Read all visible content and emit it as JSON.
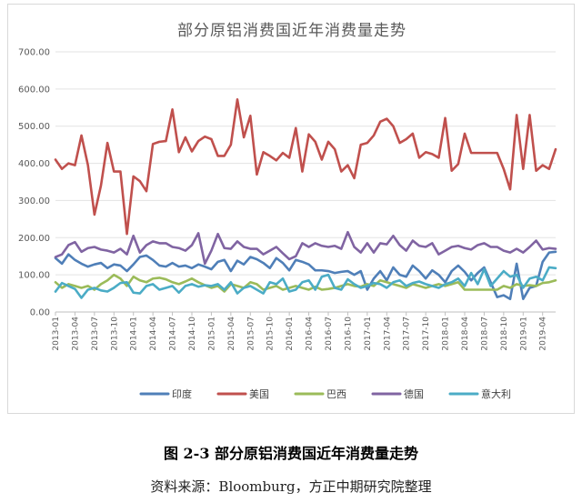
{
  "chart_data": {
    "type": "line",
    "title": "部分原铝消费国近年消费量走势",
    "xlabel": "",
    "ylabel": "",
    "ylim": [
      0,
      700
    ],
    "yticks": [
      "0.00",
      "100.00",
      "200.00",
      "300.00",
      "400.00",
      "500.00",
      "600.00",
      "700.00"
    ],
    "x": [
      "2013-01",
      "2013-02",
      "2013-03",
      "2013-04",
      "2013-05",
      "2013-06",
      "2013-07",
      "2013-08",
      "2013-09",
      "2013-10",
      "2013-11",
      "2013-12",
      "2014-01",
      "2014-02",
      "2014-03",
      "2014-04",
      "2014-05",
      "2014-06",
      "2014-07",
      "2014-08",
      "2014-09",
      "2014-10",
      "2014-11",
      "2014-12",
      "2015-01",
      "2015-02",
      "2015-03",
      "2015-04",
      "2015-05",
      "2015-06",
      "2015-07",
      "2015-08",
      "2015-09",
      "2015-10",
      "2015-11",
      "2015-12",
      "2016-01",
      "2016-02",
      "2016-03",
      "2016-04",
      "2016-05",
      "2016-06",
      "2016-07",
      "2016-08",
      "2016-09",
      "2016-10",
      "2016-11",
      "2016-12",
      "2017-01",
      "2017-02",
      "2017-03",
      "2017-04",
      "2017-05",
      "2017-06",
      "2017-07",
      "2017-08",
      "2017-09",
      "2017-10",
      "2017-11",
      "2017-12",
      "2018-01",
      "2018-02",
      "2018-03",
      "2018-04",
      "2018-05",
      "2018-06",
      "2018-07",
      "2018-08",
      "2018-09",
      "2018-10",
      "2018-11",
      "2018-12",
      "2019-01",
      "2019-02",
      "2019-03",
      "2019-04",
      "2019-05",
      "2019-06"
    ],
    "xtick_labels": [
      "2013-01",
      "2013-04",
      "2013-07",
      "2013-10",
      "2014-01",
      "2014-04",
      "2014-07",
      "2014-10",
      "2015-01",
      "2015-04",
      "2015-07",
      "2015-10",
      "2016-01",
      "2016-04",
      "2016-07",
      "2016-10",
      "2017-01",
      "2017-04",
      "2017-07",
      "2017-10",
      "2018-01",
      "2018-04",
      "2018-07",
      "2018-10",
      "2019-01",
      "2019-04"
    ],
    "grid": true,
    "legend_position": "bottom",
    "series": [
      {
        "name": "印度",
        "color": "#4f7fb8",
        "values": [
          145,
          130,
          155,
          140,
          130,
          122,
          128,
          132,
          118,
          128,
          125,
          110,
          128,
          148,
          152,
          140,
          125,
          122,
          132,
          122,
          125,
          118,
          128,
          122,
          115,
          135,
          140,
          110,
          138,
          128,
          148,
          142,
          132,
          118,
          145,
          132,
          112,
          140,
          135,
          128,
          112,
          112,
          110,
          105,
          108,
          110,
          100,
          110,
          60,
          90,
          110,
          85,
          120,
          100,
          95,
          125,
          110,
          90,
          112,
          100,
          80,
          110,
          125,
          108,
          85,
          105,
          120,
          80,
          40,
          45,
          35,
          130,
          35,
          65,
          70,
          135,
          160,
          162
        ]
      },
      {
        "name": "美国",
        "color": "#c0504d",
        "values": [
          410,
          385,
          400,
          395,
          475,
          395,
          262,
          340,
          455,
          378,
          378,
          210,
          365,
          352,
          325,
          452,
          458,
          460,
          545,
          430,
          470,
          432,
          460,
          472,
          465,
          420,
          420,
          450,
          572,
          470,
          528,
          370,
          430,
          420,
          408,
          428,
          415,
          495,
          378,
          478,
          458,
          410,
          458,
          438,
          378,
          395,
          360,
          450,
          455,
          475,
          512,
          520,
          500,
          455,
          465,
          480,
          415,
          430,
          425,
          415,
          522,
          380,
          398,
          480,
          428,
          428,
          428,
          428,
          428,
          385,
          330,
          530,
          385,
          530,
          380,
          395,
          385,
          438
        ]
      },
      {
        "name": "巴西",
        "color": "#9bbb59",
        "values": [
          80,
          65,
          75,
          70,
          65,
          70,
          60,
          75,
          85,
          100,
          90,
          70,
          95,
          85,
          80,
          90,
          92,
          88,
          80,
          75,
          82,
          90,
          80,
          72,
          65,
          70,
          55,
          75,
          70,
          65,
          80,
          75,
          60,
          65,
          70,
          60,
          65,
          70,
          65,
          60,
          68,
          60,
          62,
          65,
          70,
          75,
          70,
          68,
          75,
          70,
          85,
          80,
          75,
          70,
          65,
          75,
          70,
          65,
          70,
          75,
          70,
          75,
          80,
          60,
          60,
          60,
          60,
          60,
          60,
          70,
          65,
          75,
          70,
          72,
          70,
          78,
          80,
          85
        ]
      },
      {
        "name": "德国",
        "color": "#8064a2",
        "values": [
          148,
          155,
          180,
          188,
          162,
          172,
          175,
          168,
          165,
          160,
          170,
          155,
          205,
          160,
          180,
          190,
          185,
          185,
          175,
          172,
          165,
          180,
          212,
          130,
          165,
          210,
          172,
          170,
          190,
          175,
          170,
          170,
          155,
          165,
          175,
          158,
          142,
          150,
          185,
          175,
          185,
          178,
          175,
          178,
          170,
          215,
          175,
          160,
          185,
          160,
          185,
          182,
          205,
          180,
          165,
          192,
          178,
          175,
          185,
          155,
          165,
          175,
          178,
          172,
          168,
          180,
          185,
          175,
          175,
          165,
          160,
          170,
          160,
          175,
          192,
          168,
          172,
          170
        ]
      },
      {
        "name": "意大利",
        "color": "#4bacc6",
        "values": [
          55,
          78,
          70,
          62,
          38,
          60,
          65,
          58,
          55,
          65,
          78,
          80,
          52,
          50,
          70,
          75,
          60,
          65,
          70,
          52,
          70,
          75,
          68,
          72,
          70,
          75,
          60,
          80,
          50,
          65,
          70,
          60,
          50,
          80,
          75,
          90,
          55,
          60,
          80,
          85,
          60,
          95,
          100,
          65,
          60,
          88,
          75,
          65,
          70,
          78,
          75,
          65,
          80,
          85,
          70,
          78,
          82,
          75,
          70,
          65,
          75,
          80,
          90,
          70,
          105,
          75,
          115,
          70,
          90,
          110,
          95,
          100,
          65,
          90,
          95,
          85,
          120,
          118
        ]
      }
    ]
  },
  "caption": {
    "figure": "图 2-3  部分原铝消费国近年消费量走势",
    "source": "资料来源：Bloomburg，方正中期研究院整理"
  }
}
